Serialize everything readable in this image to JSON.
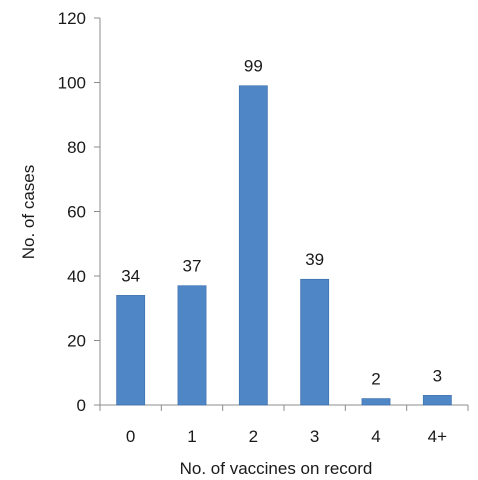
{
  "chart_data": {
    "type": "bar",
    "title": "",
    "xlabel": "No. of vaccines on record",
    "ylabel": "No. of cases",
    "categories": [
      "0",
      "1",
      "2",
      "3",
      "4",
      "4+"
    ],
    "values": [
      34,
      37,
      99,
      39,
      2,
      3
    ],
    "data_labels": [
      "34",
      "37",
      "99",
      "39",
      "2",
      "3"
    ],
    "ylim": [
      0,
      120
    ],
    "yticks": [
      "0",
      "20",
      "40",
      "60",
      "80",
      "100",
      "120"
    ],
    "grid": false,
    "legend": "none",
    "bar_color": "#4f86c6"
  }
}
